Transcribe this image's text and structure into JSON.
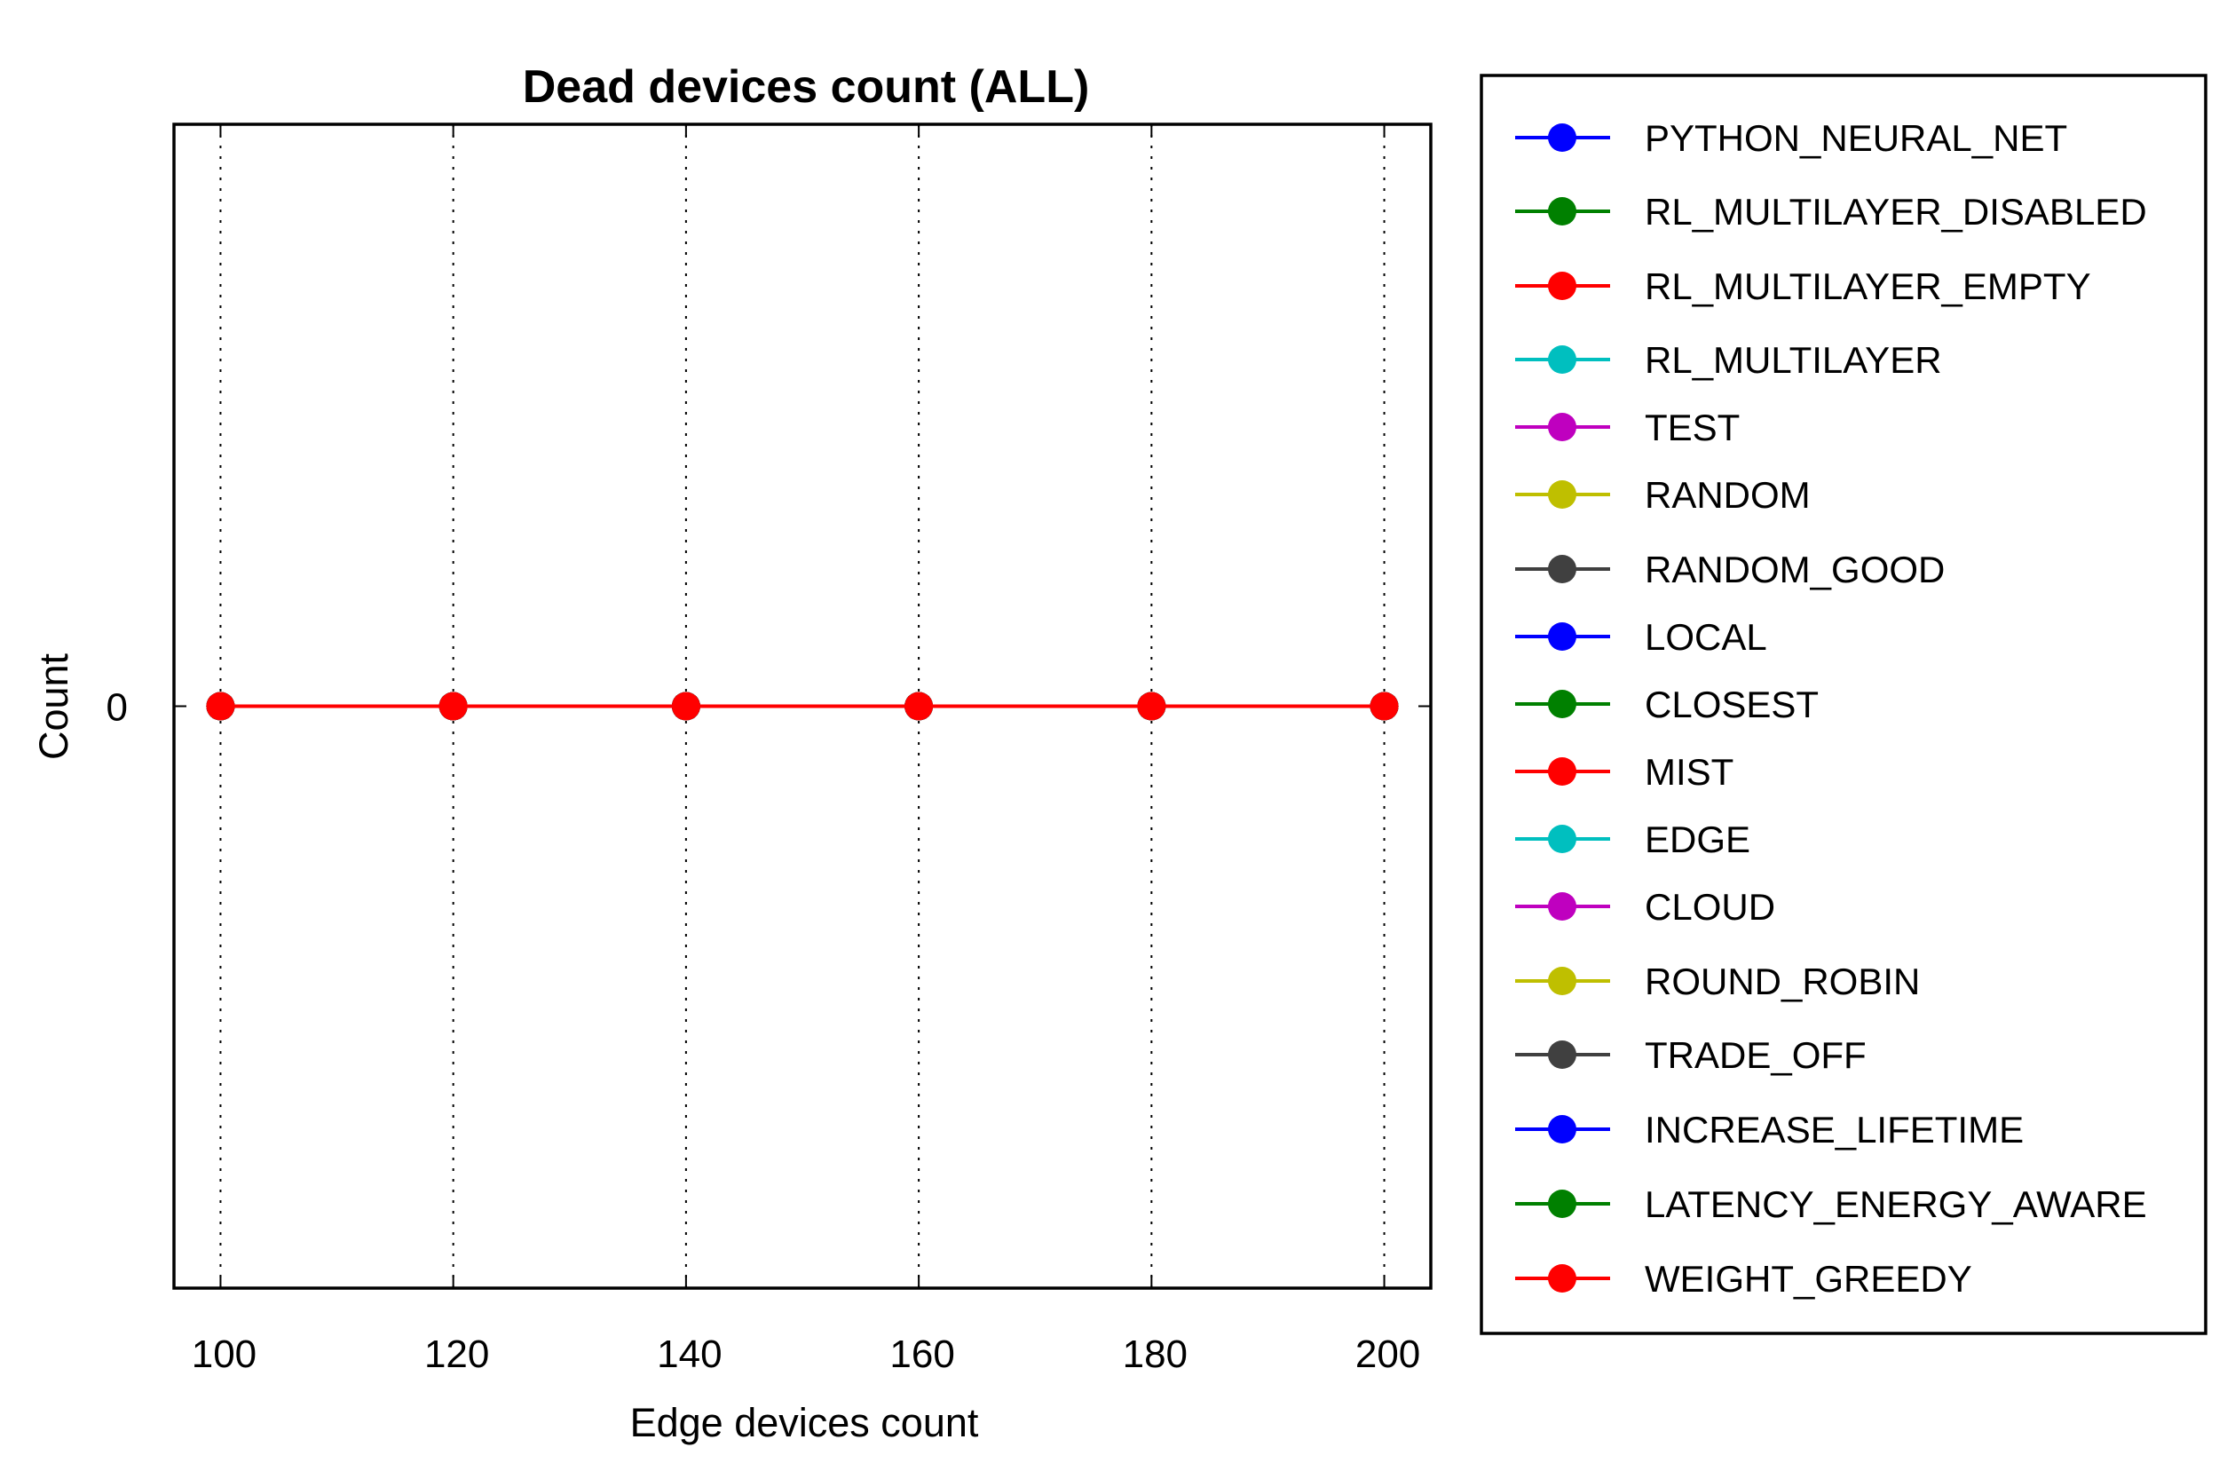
{
  "chart_data": {
    "type": "line",
    "title": "Dead devices count (ALL)",
    "xlabel": "Edge devices count",
    "ylabel": "Count",
    "x": [
      100,
      120,
      140,
      160,
      180,
      200
    ],
    "x_ticks": [
      "100",
      "120",
      "140",
      "160",
      "180",
      "200"
    ],
    "y_ticks": [
      "0"
    ],
    "xlim": [
      96,
      204
    ],
    "ylim": [
      -1,
      1
    ],
    "grid": "vertical dotted",
    "legend_position": "outside-right",
    "series": [
      {
        "name": "PYTHON_NEURAL_NET",
        "color": "#0000ff",
        "values": [
          0,
          0,
          0,
          0,
          0,
          0
        ]
      },
      {
        "name": "RL_MULTILAYER_DISABLED",
        "color": "#008000",
        "values": [
          0,
          0,
          0,
          0,
          0,
          0
        ]
      },
      {
        "name": "RL_MULTILAYER_EMPTY",
        "color": "#ff0000",
        "values": [
          0,
          0,
          0,
          0,
          0,
          0
        ]
      },
      {
        "name": "RL_MULTILAYER",
        "color": "#00bfbf",
        "values": [
          0,
          0,
          0,
          0,
          0,
          0
        ]
      },
      {
        "name": "TEST",
        "color": "#bf00bf",
        "values": [
          0,
          0,
          0,
          0,
          0,
          0
        ]
      },
      {
        "name": "RANDOM",
        "color": "#bfbf00",
        "values": [
          0,
          0,
          0,
          0,
          0,
          0
        ]
      },
      {
        "name": "RANDOM_GOOD",
        "color": "#404040",
        "values": [
          0,
          0,
          0,
          0,
          0,
          0
        ]
      },
      {
        "name": "LOCAL",
        "color": "#0000ff",
        "values": [
          0,
          0,
          0,
          0,
          0,
          0
        ]
      },
      {
        "name": "CLOSEST",
        "color": "#008000",
        "values": [
          0,
          0,
          0,
          0,
          0,
          0
        ]
      },
      {
        "name": "MIST",
        "color": "#ff0000",
        "values": [
          0,
          0,
          0,
          0,
          0,
          0
        ]
      },
      {
        "name": "EDGE",
        "color": "#00bfbf",
        "values": [
          0,
          0,
          0,
          0,
          0,
          0
        ]
      },
      {
        "name": "CLOUD",
        "color": "#bf00bf",
        "values": [
          0,
          0,
          0,
          0,
          0,
          0
        ]
      },
      {
        "name": "ROUND_ROBIN",
        "color": "#bfbf00",
        "values": [
          0,
          0,
          0,
          0,
          0,
          0
        ]
      },
      {
        "name": "TRADE_OFF",
        "color": "#404040",
        "values": [
          0,
          0,
          0,
          0,
          0,
          0
        ]
      },
      {
        "name": "INCREASE_LIFETIME",
        "color": "#0000ff",
        "values": [
          0,
          0,
          0,
          0,
          0,
          0
        ]
      },
      {
        "name": "LATENCY_ENERGY_AWARE",
        "color": "#008000",
        "values": [
          0,
          0,
          0,
          0,
          0,
          0
        ]
      },
      {
        "name": "WEIGHT_GREEDY",
        "color": "#ff0000",
        "values": [
          0,
          0,
          0,
          0,
          0,
          0
        ]
      }
    ]
  }
}
